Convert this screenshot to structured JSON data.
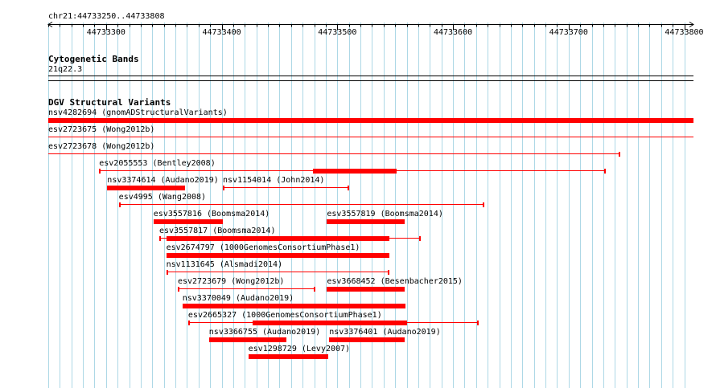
{
  "ruler": {
    "location": "chr21:44733250..44733808",
    "start": 44733250,
    "end": 44733808,
    "ticks": [
      {
        "label": "44733300",
        "pos": 44733300
      },
      {
        "label": "44733400",
        "pos": 44733400
      },
      {
        "label": "44733500",
        "pos": 44733500
      },
      {
        "label": "44733600",
        "pos": 44733600
      },
      {
        "label": "44733700",
        "pos": 44733700
      },
      {
        "label": "44733800",
        "pos": 44733800
      }
    ]
  },
  "cytobands": {
    "title": "Cytogenetic Bands",
    "band": "21q22.3"
  },
  "dgv": {
    "title": "DGV Structural Variants",
    "items": [
      {
        "label": "nsv4282694 (gnomADStructuralVariants)",
        "start": 44733250,
        "end": 44733808,
        "thick": [
          [
            44733250,
            44733808
          ]
        ],
        "row": 0,
        "color": "#ff0000"
      },
      {
        "label": "esv2723675 (Wong2012b)",
        "start": 44733250,
        "end": 44733808,
        "thick": [],
        "row": 1,
        "color": "#ff0000"
      },
      {
        "label": "esv2723678 (Wong2012b)",
        "start": 44733250,
        "end": 44733745,
        "thick": [],
        "row": 2,
        "color": "#ff0000"
      },
      {
        "label": "esv2055553 (Bentley2008)",
        "start": 44733294,
        "end": 44733732,
        "thick": [
          [
            44733479,
            44733551
          ]
        ],
        "row": 3,
        "color": "#ff0000"
      },
      {
        "label": "nsv3374614 (Audano2019)",
        "start": 44733301,
        "end": 44733368,
        "thick": [
          [
            44733301,
            44733368
          ]
        ],
        "row": 4,
        "color": "#ff0000"
      },
      {
        "label": "nsv1154014 (John2014)",
        "start": 44733401,
        "end": 44733510,
        "thick": [],
        "row": 4,
        "color": "#ff0000"
      },
      {
        "label": "esv4995 (Wang2008)",
        "start": 44733311,
        "end": 44733627,
        "thick": [],
        "row": 5,
        "color": "#ff0000"
      },
      {
        "label": "esv3557816 (Boomsma2014)",
        "start": 44733341,
        "end": 44733401,
        "thick": [
          [
            44733341,
            44733401
          ]
        ],
        "row": 6,
        "color": "#ff0000"
      },
      {
        "label": "esv3557819 (Boomsma2014)",
        "start": 44733491,
        "end": 44733558,
        "thick": [
          [
            44733491,
            44733558
          ]
        ],
        "row": 6,
        "color": "#ff0000"
      },
      {
        "label": "esv3557817 (Boomsma2014)",
        "start": 44733346,
        "end": 44733572,
        "thick": [
          [
            44733352,
            44733545
          ]
        ],
        "row": 7,
        "color": "#ff0000"
      },
      {
        "label": "esv2674797 (1000GenomesConsortiumPhase1)",
        "start": 44733352,
        "end": 44733545,
        "thick": [
          [
            44733352,
            44733545
          ]
        ],
        "row": 8,
        "color": "#ff0000"
      },
      {
        "label": "nsv1131645 (Alsmadi2014)",
        "start": 44733352,
        "end": 44733545,
        "thick": [],
        "row": 9,
        "color": "#ff0000"
      },
      {
        "label": "esv2723679 (Wong2012b)",
        "start": 44733362,
        "end": 44733481,
        "thick": [],
        "row": 10,
        "color": "#ff0000"
      },
      {
        "label": "esv3668452 (Besenbacher2015)",
        "start": 44733491,
        "end": 44733558,
        "thick": [
          [
            44733491,
            44733558
          ]
        ],
        "row": 10,
        "color": "#ff0000"
      },
      {
        "label": "nsv3370049 (Audano2019)",
        "start": 44733366,
        "end": 44733559,
        "thick": [
          [
            44733366,
            44733559
          ]
        ],
        "row": 11,
        "color": "#ff0000"
      },
      {
        "label": "esv2665327 (1000GenomesConsortiumPhase1)",
        "start": 44733371,
        "end": 44733622,
        "thick": [
          [
            44733427,
            44733560
          ]
        ],
        "row": 12,
        "color": "#ff0000"
      },
      {
        "label": "nsv3366755 (Audano2019)",
        "start": 44733389,
        "end": 44733456,
        "thick": [
          [
            44733389,
            44733456
          ]
        ],
        "row": 13,
        "color": "#ff0000"
      },
      {
        "label": "nsv3376401 (Audano2019)",
        "start": 44733493,
        "end": 44733558,
        "thick": [
          [
            44733493,
            44733558
          ]
        ],
        "row": 13,
        "color": "#ff0000"
      },
      {
        "label": "esv1298729 (Levy2007)",
        "start": 44733423,
        "end": 44733492,
        "thick": [
          [
            44733423,
            44733492
          ]
        ],
        "row": 14,
        "color": "#ff0000"
      }
    ]
  },
  "colors": {
    "grid": "#add8e6",
    "feature": "#ff0000"
  }
}
